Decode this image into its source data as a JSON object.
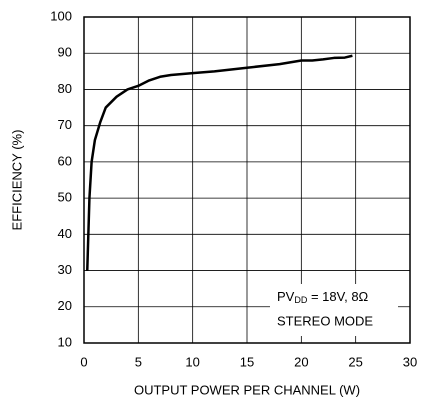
{
  "chart_data": {
    "type": "line",
    "xlabel": "OUTPUT POWER PER CHANNEL (W)",
    "ylabel": "EFFICIENCY (%)",
    "annotation": {
      "prefix": "PV",
      "subscript": "DD",
      "suffix": " = 18V, 8Ω"
    },
    "annotation2": "STEREO MODE",
    "x": [
      0.3,
      0.5,
      0.7,
      1,
      1.5,
      2,
      3,
      4,
      5,
      6,
      7,
      8,
      10,
      12,
      15,
      18,
      20,
      21,
      22,
      23,
      24,
      24.7
    ],
    "values": [
      30,
      50,
      60,
      66,
      71,
      75,
      78,
      80,
      81,
      82.5,
      83.5,
      84,
      84.5,
      85,
      86,
      87,
      88,
      88,
      88.3,
      88.7,
      88.8,
      89.3
    ],
    "color": "#000000",
    "xlim": [
      0,
      30
    ],
    "xticks": [
      0,
      5,
      10,
      15,
      20,
      25,
      30
    ],
    "ylim": [
      10,
      100
    ],
    "yticks": [
      10,
      20,
      30,
      40,
      50,
      60,
      70,
      80,
      90,
      100
    ],
    "grid": true
  }
}
